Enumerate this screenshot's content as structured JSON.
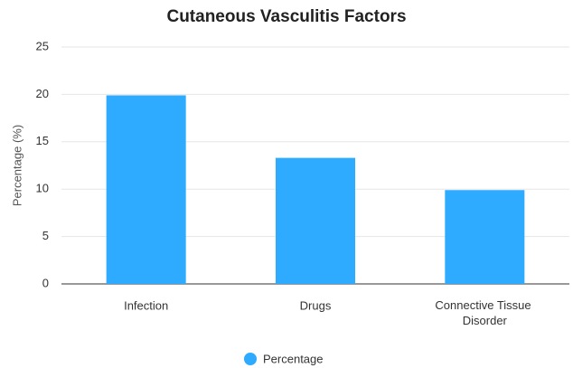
{
  "chart_data": {
    "type": "bar",
    "title": "Cutaneous Vasculitis Factors",
    "categories": [
      "Infection",
      "Drugs",
      "Connective Tissue Disorder"
    ],
    "series": [
      {
        "name": "Percentage",
        "color": "#2eaaff",
        "values": [
          19.9,
          13.3,
          9.9
        ]
      }
    ],
    "ylabel": "Percentage (%)",
    "ylim": [
      0,
      25
    ],
    "yticks": [
      0,
      5,
      10,
      15,
      20,
      25
    ],
    "grid": true,
    "legend": "bottom"
  }
}
